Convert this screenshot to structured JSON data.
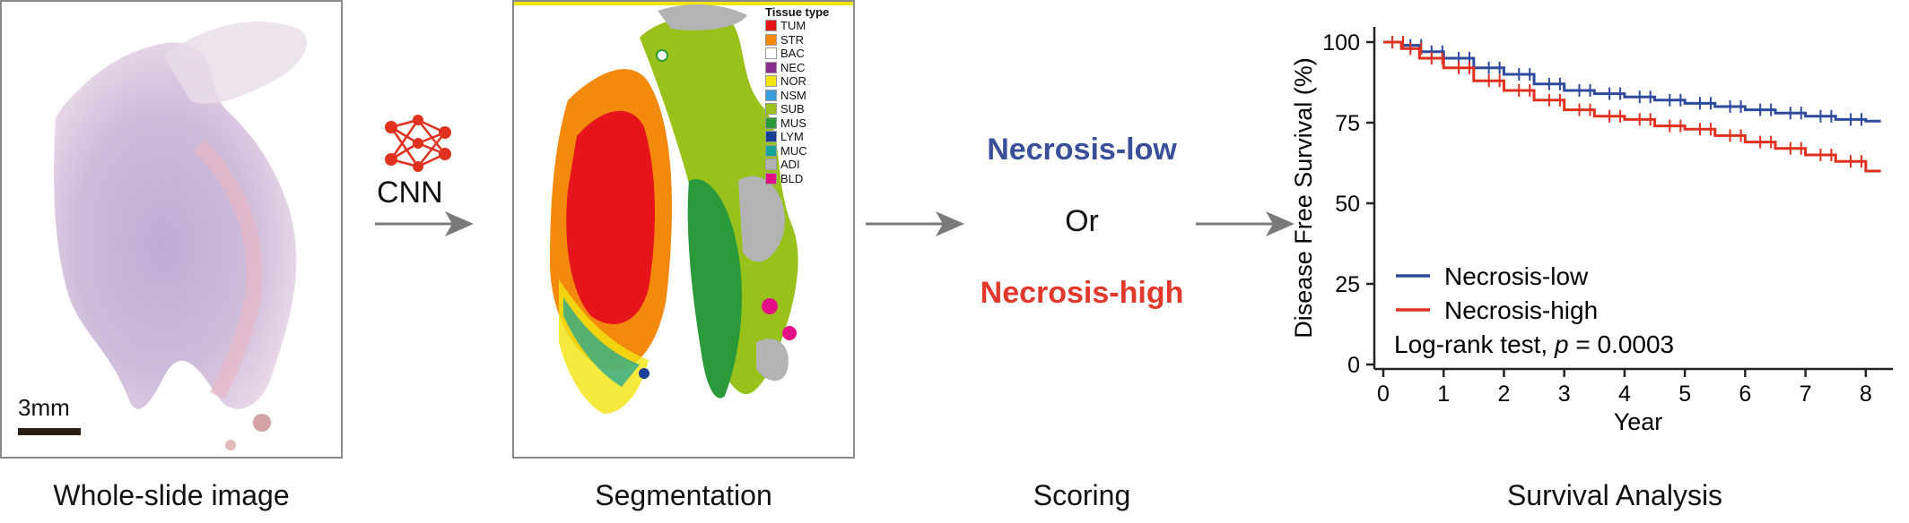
{
  "panels": {
    "wsi": {
      "caption": "Whole-slide image",
      "scale_bar_label": "3mm"
    },
    "cnn": {
      "label": "CNN"
    },
    "segmentation": {
      "caption": "Segmentation",
      "legend_title": "Tissue type",
      "legend_items": [
        {
          "code": "TUM",
          "color": "#e5151b"
        },
        {
          "code": "STR",
          "color": "#f38a0d"
        },
        {
          "code": "BAC",
          "color": "#ffffff"
        },
        {
          "code": "NEC",
          "color": "#8b2c8f"
        },
        {
          "code": "NOR",
          "color": "#f2e40f"
        },
        {
          "code": "NSM",
          "color": "#3a9de0"
        },
        {
          "code": "SUB",
          "color": "#98c21b"
        },
        {
          "code": "MUS",
          "color": "#2a9a3a"
        },
        {
          "code": "LYM",
          "color": "#1a3f96"
        },
        {
          "code": "MUC",
          "color": "#12a39b"
        },
        {
          "code": "ADI",
          "color": "#b3b3b3"
        },
        {
          "code": "BLD",
          "color": "#e20f87"
        }
      ]
    },
    "scoring": {
      "caption": "Scoring",
      "low_label": "Necrosis-low",
      "or_label": "Or",
      "high_label": "Necrosis-high",
      "low_color": "#3a4f9a",
      "high_color": "#e0382a"
    },
    "survival": {
      "caption": "Survival Analysis"
    }
  },
  "chart_data": {
    "type": "line",
    "title": "",
    "xlabel": "Year",
    "ylabel": "Disease Free Survival (%)",
    "xlim": [
      0,
      8.3
    ],
    "ylim": [
      0,
      100
    ],
    "xticks": [
      0,
      1,
      2,
      3,
      4,
      5,
      6,
      7,
      8
    ],
    "yticks": [
      0,
      25,
      50,
      75,
      100
    ],
    "legend_position": "bottom-left",
    "annotation": {
      "prefix": "Log-rank test, ",
      "italic": "p",
      "suffix": " = 0.0003"
    },
    "series": [
      {
        "name": "Necrosis-low",
        "color": "#2e4a9e",
        "x": [
          0,
          0.3,
          0.6,
          1.0,
          1.5,
          2.0,
          2.5,
          3.0,
          3.5,
          4.0,
          4.5,
          5.0,
          5.5,
          6.0,
          6.5,
          7.0,
          7.5,
          8.0
        ],
        "y": [
          100,
          99,
          97,
          95,
          92,
          90,
          87,
          85,
          84,
          83,
          82,
          81,
          80,
          79,
          78,
          77,
          76,
          75.5
        ]
      },
      {
        "name": "Necrosis-high",
        "color": "#e0301e",
        "x": [
          0,
          0.3,
          0.6,
          1.0,
          1.5,
          2.0,
          2.5,
          3.0,
          3.5,
          4.0,
          4.5,
          5.0,
          5.5,
          6.0,
          6.5,
          7.0,
          7.5,
          8.0
        ],
        "y": [
          100,
          98,
          95,
          92,
          88,
          85,
          82,
          79,
          77,
          76,
          74,
          73,
          71,
          69,
          67,
          65,
          63,
          60
        ]
      }
    ]
  }
}
